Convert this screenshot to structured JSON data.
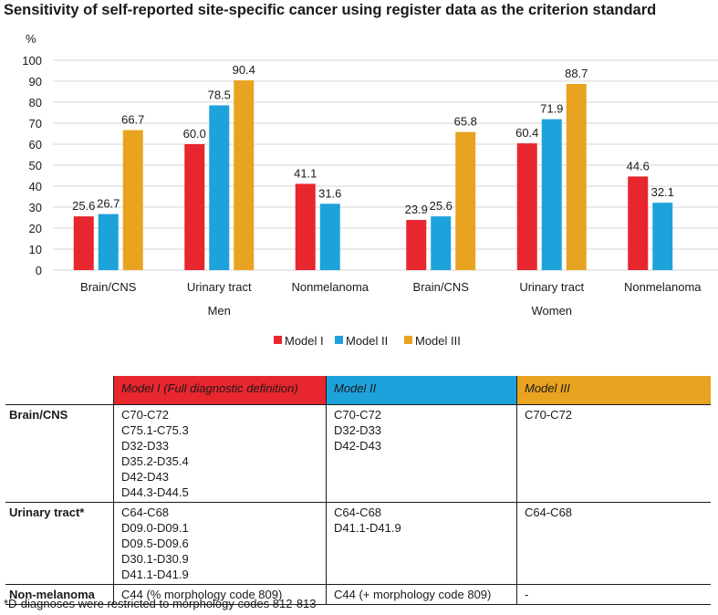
{
  "title": "Sensitivity of self-reported site-specific cancer using register data as the criterion standard",
  "chart_data": {
    "type": "bar",
    "ylabel": "%",
    "ylim": [
      0,
      100
    ],
    "yticks": [
      0,
      10,
      20,
      30,
      40,
      50,
      60,
      70,
      80,
      90,
      100
    ],
    "groups": [
      "Men",
      "Women"
    ],
    "categories": [
      "Brain/CNS",
      "Urinary tract",
      "Nonmelanoma",
      "Brain/CNS",
      "Urinary tract",
      "Nonmelanoma"
    ],
    "series": [
      {
        "name": "Model I",
        "color": "#e8262e",
        "values": [
          25.6,
          60.0,
          41.1,
          23.9,
          60.4,
          44.6
        ],
        "labels": [
          "25.6",
          "60.0",
          "41.1",
          "23.9",
          "60.4",
          "44.6"
        ]
      },
      {
        "name": "Model II",
        "color": "#1ea2dc",
        "values": [
          26.7,
          78.5,
          31.6,
          25.6,
          71.9,
          32.1
        ],
        "labels": [
          "26.7",
          "78.5",
          "31.6",
          "25.6",
          "71.9",
          "32.1"
        ]
      },
      {
        "name": "Model III",
        "color": "#e8a321",
        "values": [
          66.7,
          90.4,
          null,
          65.8,
          88.7,
          null
        ],
        "labels": [
          "66.7",
          "90.4",
          "",
          "65.8",
          "88.7",
          ""
        ]
      }
    ],
    "legend_position": "bottom-center",
    "gridlines": true
  },
  "table": {
    "headers": [
      "Model I (Full diagnostic definition)",
      "Model II",
      "Model III"
    ],
    "header_colors": [
      "#e8262e",
      "#1ea2dc",
      "#e8a321"
    ],
    "rows": [
      {
        "site": "Brain/CNS",
        "m1": [
          "C70-C72",
          "C75.1-C75.3",
          "D32-D33",
          "D35.2-D35.4",
          "D42-D43",
          "D44.3-D44.5"
        ],
        "m2": [
          "C70-C72",
          "D32-D33",
          "D42-D43"
        ],
        "m3": [
          "C70-C72"
        ]
      },
      {
        "site": "Urinary tract*",
        "m1": [
          "C64-C68",
          "D09.0-D09.1",
          "D09.5-D09.6",
          "D30.1-D30.9",
          "D41.1-D41.9"
        ],
        "m2": [
          "C64-C68",
          "D41.1-D41.9"
        ],
        "m3": [
          "C64-C68"
        ]
      },
      {
        "site": "Non-melanoma",
        "m1": [
          "C44 (% morphology code 809)"
        ],
        "m2": [
          "C44 (+ morphology code 809)"
        ],
        "m3": [
          "-"
        ]
      }
    ],
    "footnote": "*D-diagnoses were restricted to morphology codes 812-813"
  }
}
